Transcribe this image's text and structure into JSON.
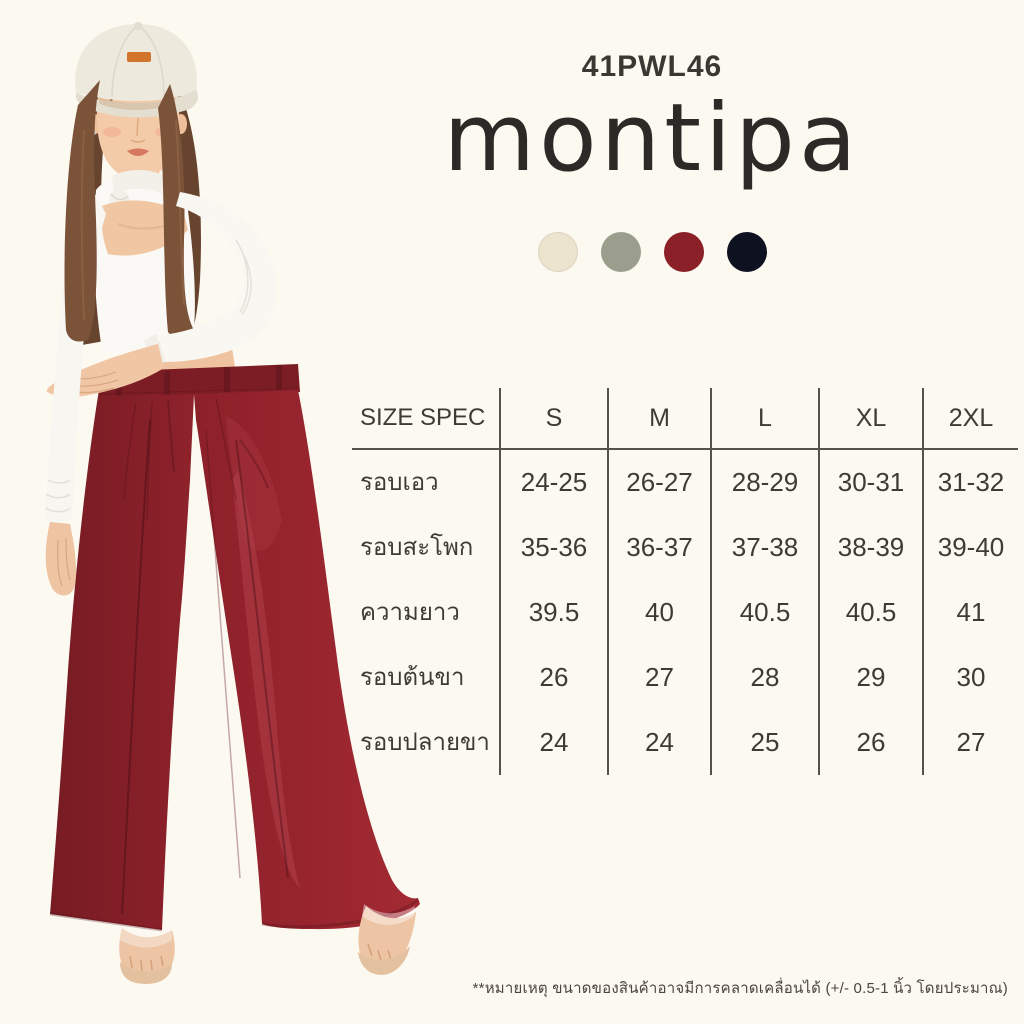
{
  "header": {
    "product_code": "41PWL46",
    "brand_logo": "montipa",
    "logo_color": "#2B2A26",
    "text_color": "#3A3833"
  },
  "swatches": [
    {
      "name": "cream",
      "hex": "#EDE4D0"
    },
    {
      "name": "sage",
      "hex": "#9B9E8D"
    },
    {
      "name": "maroon",
      "hex": "#8B2029"
    },
    {
      "name": "black",
      "hex": "#0E1120"
    }
  ],
  "size_table": {
    "header": [
      "SIZE SPEC",
      "S",
      "M",
      "L",
      "XL",
      "2XL"
    ],
    "rows": [
      {
        "label": "รอบเอว",
        "values": [
          "24-25",
          "26-27",
          "28-29",
          "30-31",
          "31-32"
        ]
      },
      {
        "label": "รอบสะโพก",
        "values": [
          "35-36",
          "36-37",
          "37-38",
          "38-39",
          "39-40"
        ]
      },
      {
        "label": "ความยาว",
        "values": [
          "39.5",
          "40",
          "40.5",
          "40.5",
          "41"
        ]
      },
      {
        "label": "รอบต้นขา",
        "values": [
          "26",
          "27",
          "28",
          "29",
          "30"
        ]
      },
      {
        "label": "รอบปลายขา",
        "values": [
          "24",
          "24",
          "25",
          "26",
          "27"
        ]
      }
    ]
  },
  "footnote": "**หมายเหตุ ขนาดของสินค้าอาจมีการคลาดเคลื่อนได้ (+/- 0.5-1 นิ้ว โดยประมาณ)"
}
